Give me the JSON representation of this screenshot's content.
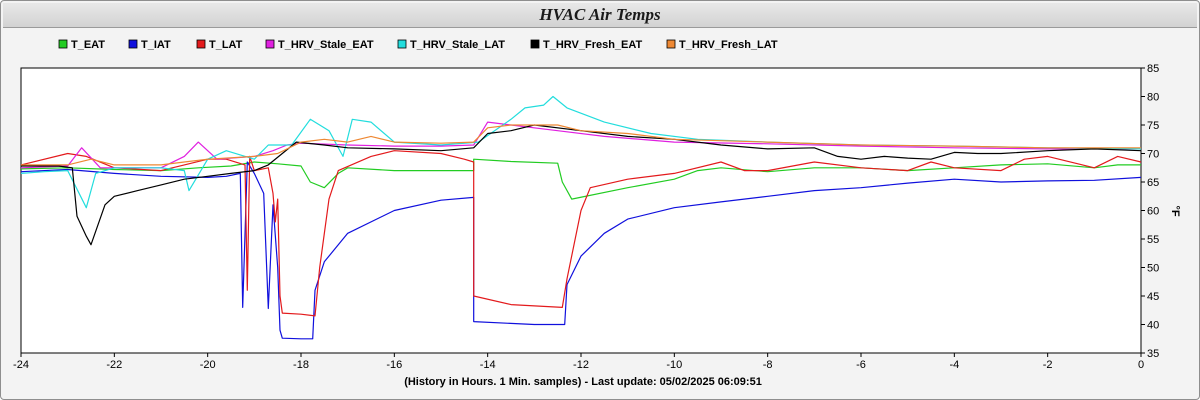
{
  "chart_data": {
    "type": "line",
    "title": "HVAC Air Temps",
    "xlabel": "(History in Hours. 1 Min. samples) - Last update: 05/02/2025 06:09:51",
    "ylabel": "°F",
    "xlim": [
      -24,
      0
    ],
    "ylim": [
      35,
      85
    ],
    "x_ticks": [
      "-24",
      "-22",
      "-20",
      "-18",
      "-16",
      "-14",
      "-12",
      "-10",
      "-8",
      "-6",
      "-4",
      "-2",
      "0"
    ],
    "y_ticks": [
      "35",
      "40",
      "45",
      "50",
      "55",
      "60",
      "65",
      "70",
      "75",
      "80",
      "85"
    ],
    "grid": false,
    "legend_position": "top",
    "series": [
      {
        "name": "T_EAT",
        "color": "#22cc22",
        "points": [
          [
            -24,
            67.3
          ],
          [
            -23,
            67.5
          ],
          [
            -22,
            67.2
          ],
          [
            -21,
            67.0
          ],
          [
            -20.2,
            67.5
          ],
          [
            -19.5,
            67.8
          ],
          [
            -19,
            68.5
          ],
          [
            -18.5,
            68.2
          ],
          [
            -18,
            67.8
          ],
          [
            -17.8,
            65.0
          ],
          [
            -17.5,
            64.0
          ],
          [
            -17.2,
            66.5
          ],
          [
            -17,
            67.5
          ],
          [
            -16,
            67.0
          ],
          [
            -15,
            67.0
          ],
          [
            -14.3,
            67.0
          ],
          [
            -14.3,
            69.0
          ],
          [
            -13.5,
            68.6
          ],
          [
            -12.5,
            68.3
          ],
          [
            -12.4,
            65.0
          ],
          [
            -12.2,
            62.0
          ],
          [
            -11,
            64.0
          ],
          [
            -10,
            65.5
          ],
          [
            -9.5,
            67.0
          ],
          [
            -9,
            67.5
          ],
          [
            -8,
            66.8
          ],
          [
            -7,
            67.5
          ],
          [
            -6,
            67.5
          ],
          [
            -5,
            67.0
          ],
          [
            -4,
            67.5
          ],
          [
            -3,
            68.0
          ],
          [
            -2,
            68.2
          ],
          [
            -1,
            67.5
          ],
          [
            -0.5,
            68.0
          ],
          [
            0,
            68.0
          ]
        ]
      },
      {
        "name": "T_IAT",
        "color": "#1010dd",
        "points": [
          [
            -24,
            66.8
          ],
          [
            -23,
            67.2
          ],
          [
            -22,
            66.5
          ],
          [
            -21,
            66.0
          ],
          [
            -20,
            65.8
          ],
          [
            -19.6,
            66.0
          ],
          [
            -19.3,
            66.5
          ],
          [
            -19.25,
            43.0
          ],
          [
            -19.15,
            68.5
          ],
          [
            -19,
            66.5
          ],
          [
            -18.8,
            63.0
          ],
          [
            -18.7,
            42.8
          ],
          [
            -18.6,
            61.0
          ],
          [
            -18.5,
            50.0
          ],
          [
            -18.45,
            39.0
          ],
          [
            -18.4,
            37.6
          ],
          [
            -18,
            37.5
          ],
          [
            -17.75,
            37.5
          ],
          [
            -17.7,
            46.0
          ],
          [
            -17.5,
            51.0
          ],
          [
            -17,
            56.0
          ],
          [
            -16,
            60.0
          ],
          [
            -15,
            61.8
          ],
          [
            -14.3,
            62.3
          ],
          [
            -14.3,
            40.5
          ],
          [
            -13,
            40.0
          ],
          [
            -12.35,
            40.0
          ],
          [
            -12.3,
            47.0
          ],
          [
            -12,
            52.0
          ],
          [
            -11.5,
            56.0
          ],
          [
            -11,
            58.5
          ],
          [
            -10,
            60.5
          ],
          [
            -9,
            61.5
          ],
          [
            -8,
            62.5
          ],
          [
            -7,
            63.5
          ],
          [
            -6,
            64.0
          ],
          [
            -5,
            64.8
          ],
          [
            -4,
            65.5
          ],
          [
            -3,
            65.0
          ],
          [
            -2,
            65.2
          ],
          [
            -1,
            65.3
          ],
          [
            0,
            65.8
          ]
        ]
      },
      {
        "name": "T_LAT",
        "color": "#e31a1c",
        "points": [
          [
            -24,
            68.0
          ],
          [
            -23,
            70.0
          ],
          [
            -22.6,
            69.5
          ],
          [
            -22,
            67.5
          ],
          [
            -21,
            67.0
          ],
          [
            -20.5,
            68.0
          ],
          [
            -20,
            69.0
          ],
          [
            -19.6,
            69.0
          ],
          [
            -19.2,
            68.0
          ],
          [
            -19.15,
            46.0
          ],
          [
            -19.1,
            69.5
          ],
          [
            -19,
            67.0
          ],
          [
            -18.7,
            67.5
          ],
          [
            -18.6,
            63.0
          ],
          [
            -18.55,
            58.0
          ],
          [
            -18.5,
            62.0
          ],
          [
            -18.45,
            45.0
          ],
          [
            -18.4,
            42.0
          ],
          [
            -18,
            41.8
          ],
          [
            -17.7,
            41.5
          ],
          [
            -17.6,
            50.0
          ],
          [
            -17.4,
            62.0
          ],
          [
            -17.2,
            67.0
          ],
          [
            -16.5,
            69.5
          ],
          [
            -16,
            70.5
          ],
          [
            -15,
            70.0
          ],
          [
            -14.5,
            69.0
          ],
          [
            -14.3,
            68.5
          ],
          [
            -14.3,
            45.0
          ],
          [
            -13.5,
            43.5
          ],
          [
            -12.4,
            43.0
          ],
          [
            -12.3,
            48.0
          ],
          [
            -12,
            60.0
          ],
          [
            -11.8,
            64.0
          ],
          [
            -11,
            65.5
          ],
          [
            -10,
            66.5
          ],
          [
            -9,
            68.5
          ],
          [
            -8.5,
            67.0
          ],
          [
            -8,
            67.0
          ],
          [
            -7,
            68.5
          ],
          [
            -6,
            67.5
          ],
          [
            -5,
            67.0
          ],
          [
            -4.5,
            68.5
          ],
          [
            -4,
            67.5
          ],
          [
            -3,
            67.0
          ],
          [
            -2.5,
            69.0
          ],
          [
            -2,
            69.5
          ],
          [
            -1,
            67.5
          ],
          [
            -0.5,
            69.5
          ],
          [
            0,
            68.5
          ]
        ]
      },
      {
        "name": "T_HRV_Stale_EAT",
        "color": "#e020e0",
        "points": [
          [
            -24,
            67.5
          ],
          [
            -23,
            67.8
          ],
          [
            -22.7,
            71.0
          ],
          [
            -22.3,
            67.5
          ],
          [
            -21,
            67.5
          ],
          [
            -20.5,
            69.5
          ],
          [
            -20.2,
            72.0
          ],
          [
            -19.8,
            69.0
          ],
          [
            -19,
            69.5
          ],
          [
            -18.6,
            70.5
          ],
          [
            -18.3,
            71.5
          ],
          [
            -18,
            71.8
          ],
          [
            -17,
            71.5
          ],
          [
            -16,
            71.3
          ],
          [
            -15,
            71.3
          ],
          [
            -14.3,
            71.5
          ],
          [
            -14,
            75.5
          ],
          [
            -13.5,
            75.0
          ],
          [
            -12.5,
            74.0
          ],
          [
            -11.5,
            73.0
          ],
          [
            -10,
            72.0
          ],
          [
            -8,
            71.7
          ],
          [
            -6,
            71.3
          ],
          [
            -4,
            71.0
          ],
          [
            -2,
            70.8
          ],
          [
            0,
            70.8
          ]
        ]
      },
      {
        "name": "T_HRV_Stale_LAT",
        "color": "#22dddd",
        "points": [
          [
            -24,
            66.5
          ],
          [
            -23.5,
            66.8
          ],
          [
            -23,
            67.0
          ],
          [
            -22.6,
            60.5
          ],
          [
            -22.4,
            66.5
          ],
          [
            -22,
            67.5
          ],
          [
            -21,
            67.5
          ],
          [
            -20.5,
            67.0
          ],
          [
            -20.4,
            63.5
          ],
          [
            -20,
            69.0
          ],
          [
            -19.6,
            70.5
          ],
          [
            -19,
            69.0
          ],
          [
            -18.7,
            71.5
          ],
          [
            -18.2,
            71.5
          ],
          [
            -17.8,
            76.0
          ],
          [
            -17.4,
            74.0
          ],
          [
            -17.1,
            69.5
          ],
          [
            -16.9,
            76.0
          ],
          [
            -16.5,
            75.5
          ],
          [
            -16,
            72.0
          ],
          [
            -15,
            71.5
          ],
          [
            -14.2,
            72.0
          ],
          [
            -13.5,
            76.0
          ],
          [
            -13.2,
            78.0
          ],
          [
            -12.8,
            78.5
          ],
          [
            -12.6,
            80.0
          ],
          [
            -12.3,
            78.0
          ],
          [
            -11.5,
            75.5
          ],
          [
            -10.5,
            73.5
          ],
          [
            -9.5,
            72.5
          ],
          [
            -8,
            72.0
          ],
          [
            -6,
            71.5
          ],
          [
            -4,
            71.3
          ],
          [
            -2,
            71.0
          ],
          [
            0,
            70.8
          ]
        ]
      },
      {
        "name": "T_HRV_Fresh_EAT",
        "color": "#000000",
        "points": [
          [
            -24,
            67.8
          ],
          [
            -23.2,
            67.8
          ],
          [
            -22.9,
            67.5
          ],
          [
            -22.8,
            59.0
          ],
          [
            -22.6,
            55.5
          ],
          [
            -22.5,
            54.0
          ],
          [
            -22.2,
            61.0
          ],
          [
            -22,
            62.5
          ],
          [
            -21.5,
            63.5
          ],
          [
            -21,
            64.5
          ],
          [
            -20.5,
            65.5
          ],
          [
            -20,
            66.0
          ],
          [
            -19.5,
            66.5
          ],
          [
            -19,
            67.0
          ],
          [
            -18.7,
            68.0
          ],
          [
            -18.4,
            70.0
          ],
          [
            -18.1,
            72.0
          ],
          [
            -17.5,
            71.5
          ],
          [
            -17,
            71.0
          ],
          [
            -16,
            70.8
          ],
          [
            -15,
            70.5
          ],
          [
            -14.3,
            71.0
          ],
          [
            -14,
            73.5
          ],
          [
            -13.5,
            74.0
          ],
          [
            -13,
            75.0
          ],
          [
            -12,
            74.0
          ],
          [
            -11,
            73.0
          ],
          [
            -10,
            72.5
          ],
          [
            -9,
            71.5
          ],
          [
            -8,
            70.8
          ],
          [
            -7,
            71.0
          ],
          [
            -6.5,
            69.5
          ],
          [
            -6,
            69.0
          ],
          [
            -5.5,
            69.5
          ],
          [
            -5,
            69.2
          ],
          [
            -4.5,
            69.0
          ],
          [
            -4,
            70.2
          ],
          [
            -3.5,
            70.0
          ],
          [
            -3,
            70.0
          ],
          [
            -2,
            70.5
          ],
          [
            -1,
            70.8
          ],
          [
            0,
            70.5
          ]
        ]
      },
      {
        "name": "T_HRV_Fresh_LAT",
        "color": "#ee8833",
        "points": [
          [
            -24,
            68.0
          ],
          [
            -23,
            68.0
          ],
          [
            -22.5,
            69.0
          ],
          [
            -22,
            68.0
          ],
          [
            -21,
            68.0
          ],
          [
            -20.5,
            68.5
          ],
          [
            -20,
            69.0
          ],
          [
            -19,
            69.5
          ],
          [
            -18.5,
            70.0
          ],
          [
            -18,
            72.0
          ],
          [
            -17.5,
            72.5
          ],
          [
            -17,
            72.0
          ],
          [
            -16.5,
            73.0
          ],
          [
            -16,
            72.0
          ],
          [
            -15,
            71.8
          ],
          [
            -14.3,
            72.0
          ],
          [
            -14,
            74.5
          ],
          [
            -13.5,
            75.0
          ],
          [
            -12.5,
            75.0
          ],
          [
            -12,
            74.0
          ],
          [
            -11,
            73.5
          ],
          [
            -10,
            72.5
          ],
          [
            -8,
            72.0
          ],
          [
            -6,
            71.5
          ],
          [
            -4,
            71.3
          ],
          [
            -2,
            71.0
          ],
          [
            0,
            71.0
          ]
        ]
      }
    ]
  }
}
